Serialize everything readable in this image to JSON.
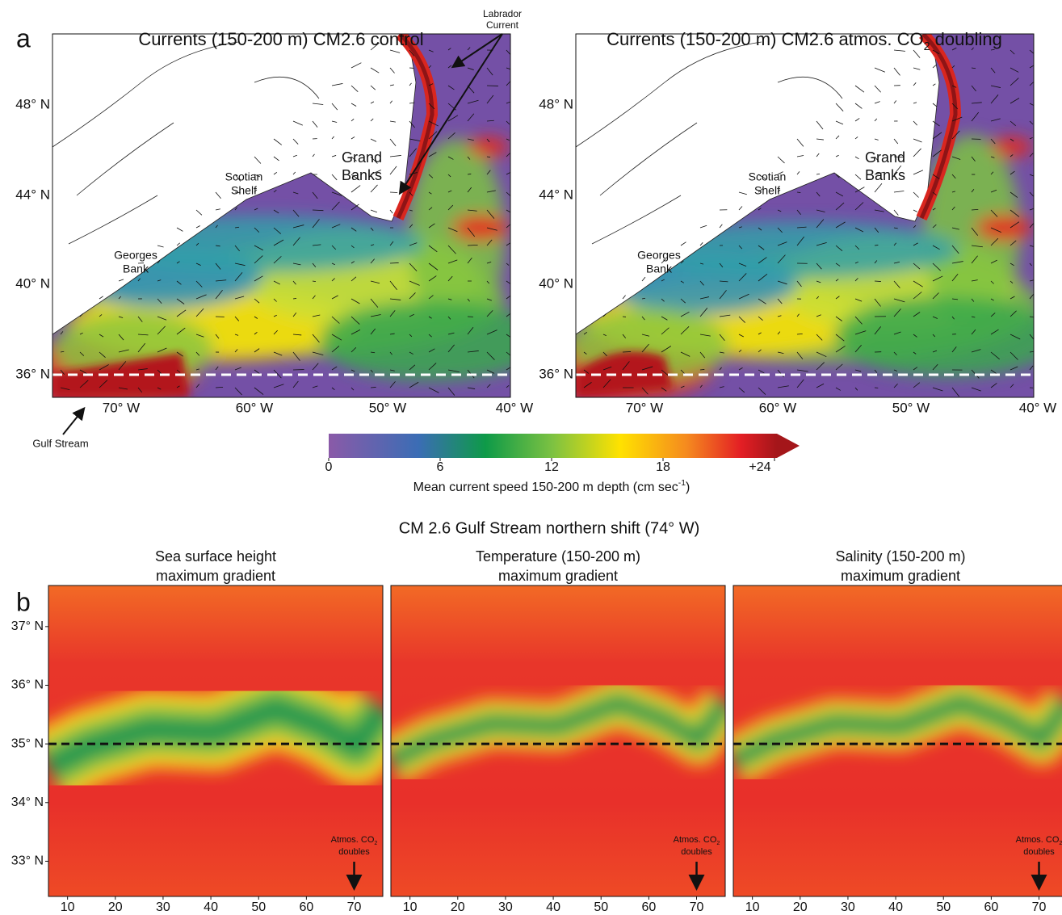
{
  "panel_a": {
    "label": "a",
    "maps": [
      {
        "title_parts": [
          "Currents (150-200 m) CM2.6 control"
        ]
      },
      {
        "title_parts": [
          "Currents (150-200 m) CM2.6 atmos. CO",
          "2",
          " doubling"
        ]
      }
    ],
    "lat_ticks": [
      "48° N",
      "44° N",
      "40° N",
      "36° N"
    ],
    "lon_ticks": [
      "70° W",
      "60° W",
      "50° W",
      "40° W"
    ],
    "annotations": {
      "labrador_current": [
        "Labrador",
        "Current"
      ],
      "grand_banks": [
        "Grand",
        "Banks"
      ],
      "scotian_shelf": [
        "Scotian",
        "Shelf"
      ],
      "georges_bank": [
        "Georges",
        "Bank"
      ],
      "gulf_stream": "Gulf Stream"
    }
  },
  "colorbar": {
    "lim": [
      0,
      24
    ],
    "ticks": [
      0,
      6,
      12,
      18,
      {
        "value": 24,
        "label": "+24"
      }
    ],
    "label_parts": [
      "Mean current speed 150-200 m depth (cm sec",
      "-1",
      ")"
    ]
  },
  "panel_b": {
    "label": "b",
    "title": "CM 2.6 Gulf Stream northern shift (74° W)",
    "subplots": [
      {
        "title": [
          "Sea surface height",
          "maximum gradient"
        ]
      },
      {
        "title": [
          "Temperature (150-200 m)",
          "maximum gradient"
        ]
      },
      {
        "title": [
          "Salinity (150-200 m)",
          "maximum gradient"
        ]
      }
    ],
    "xlim": [
      6,
      76
    ],
    "xticks": [
      10,
      20,
      30,
      40,
      50,
      60,
      70
    ],
    "ylim": [
      32.4,
      37.7
    ],
    "yticks": [
      {
        "value": 33,
        "label": "33° N"
      },
      {
        "value": 34,
        "label": "34° N"
      },
      {
        "value": 35,
        "label": "35° N"
      },
      {
        "value": 36,
        "label": "36° N"
      },
      {
        "value": 37,
        "label": "37° N"
      }
    ],
    "reference_line": 35,
    "annotation": {
      "x": 70,
      "text_parts": [
        "Atmos. CO",
        "2",
        "doubles"
      ]
    }
  }
}
